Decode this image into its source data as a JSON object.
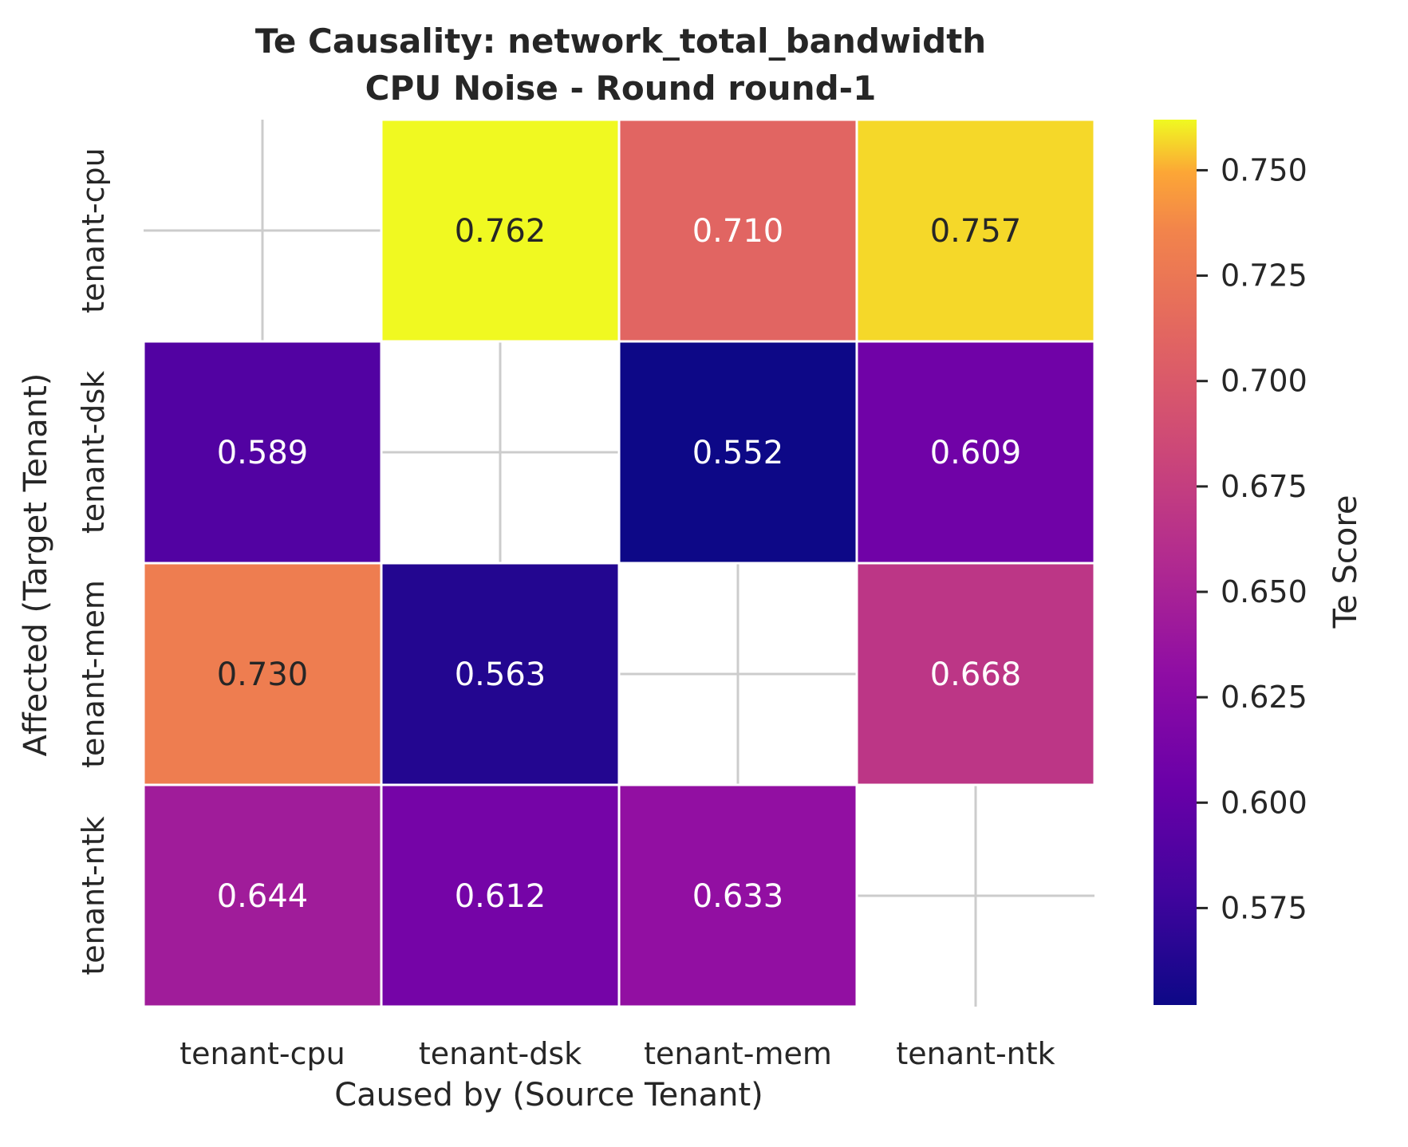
{
  "chart_data": {
    "type": "heatmap",
    "title": "Te Causality: network_total_bandwidth",
    "subtitle": "CPU Noise - Round round-1",
    "xlabel": "Caused by (Source Tenant)",
    "ylabel": "Affected (Target Tenant)",
    "x_categories": [
      "tenant-cpu",
      "tenant-dsk",
      "tenant-mem",
      "tenant-ntk"
    ],
    "y_categories": [
      "tenant-cpu",
      "tenant-dsk",
      "tenant-mem",
      "tenant-ntk"
    ],
    "values": [
      [
        null,
        0.762,
        0.71,
        0.757
      ],
      [
        0.589,
        null,
        0.552,
        0.609
      ],
      [
        0.73,
        0.563,
        null,
        0.668
      ],
      [
        0.644,
        0.612,
        0.633,
        null
      ]
    ],
    "value_labels": [
      [
        "",
        "0.762",
        "0.710",
        "0.757"
      ],
      [
        "0.589",
        "",
        "0.552",
        "0.609"
      ],
      [
        "0.730",
        "0.563",
        "",
        "0.668"
      ],
      [
        "0.644",
        "0.612",
        "0.633",
        ""
      ]
    ],
    "colormap": "plasma",
    "colorbar": {
      "label": "Te Score",
      "range": [
        0.552,
        0.762
      ],
      "ticks": [
        0.575,
        0.6,
        0.625,
        0.65,
        0.675,
        0.7,
        0.725,
        0.75
      ],
      "tick_labels": [
        "0.575",
        "0.600",
        "0.625",
        "0.650",
        "0.675",
        "0.700",
        "0.725",
        "0.750"
      ]
    },
    "grid": true
  }
}
